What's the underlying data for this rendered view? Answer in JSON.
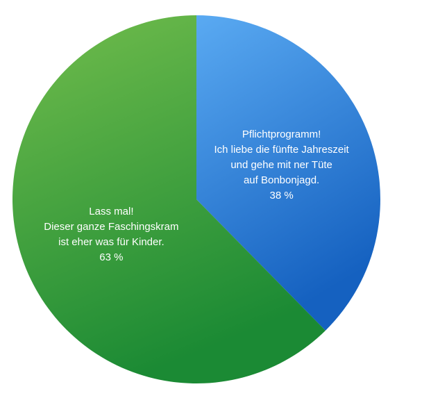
{
  "chart_data": {
    "type": "pie",
    "title": "",
    "start_angle_deg": 0,
    "direction": "clockwise",
    "slices": [
      {
        "label_lines": [
          "Pflichtprogramm!",
          "Ich liebe die fünfte Jahreszeit",
          "und gehe mit ner Tüte",
          "auf Bonbonjagd.",
          "38 %"
        ],
        "value": 38,
        "percent_label": "38 %",
        "color_light": "#5aaaf2",
        "color_dark": "#1561c0"
      },
      {
        "label_lines": [
          "Lass mal!",
          "Dieser ganze Faschingskram",
          "ist eher was für Kinder.",
          "63 %"
        ],
        "value": 63,
        "percent_label": "63 %",
        "color_light": "#72bd4c",
        "color_dark": "#1b8a34"
      }
    ]
  }
}
